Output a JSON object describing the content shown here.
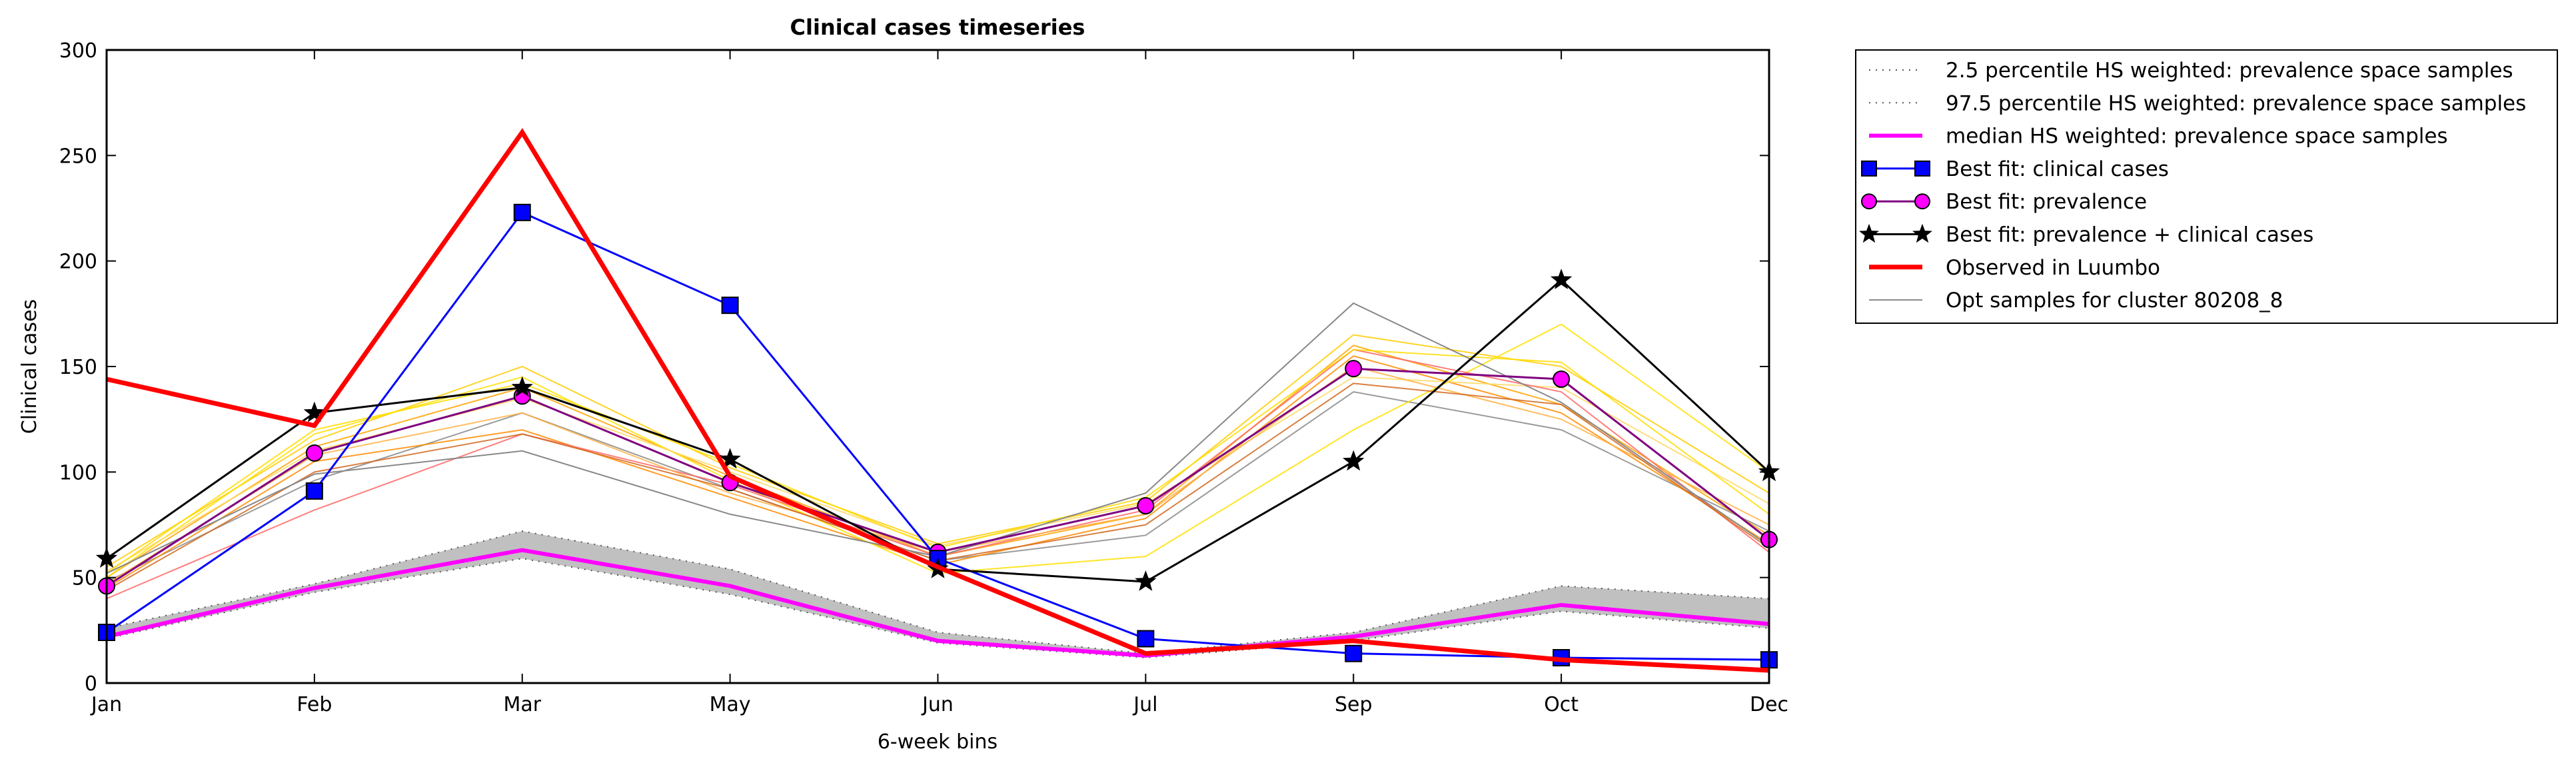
{
  "chart_data": {
    "type": "line",
    "title": "Clinical cases timeseries",
    "xlabel": "6-week bins",
    "ylabel": "Clinical cases",
    "categories": [
      "Jan",
      "Feb",
      "Mar",
      "May",
      "Jun",
      "Jul",
      "Sep",
      "Oct",
      "Dec"
    ],
    "ylim": [
      0,
      300
    ],
    "yticks": [
      0,
      50,
      100,
      150,
      200,
      250,
      300
    ],
    "grid": false,
    "legend_position": "outside-right-top",
    "series": [
      {
        "name": "2.5 percentile HS weighted: prevalence space samples",
        "style": "dotted",
        "color": "#555555",
        "values": [
          21,
          43,
          59,
          42,
          19,
          12,
          20,
          34,
          26
        ]
      },
      {
        "name": "97.5 percentile HS weighted: prevalence space samples",
        "style": "dotted",
        "color": "#555555",
        "values": [
          26,
          47,
          72,
          54,
          24,
          14,
          24,
          46,
          40
        ]
      },
      {
        "name": "median HS weighted: prevalence space samples",
        "style": "solid",
        "color": "#ff00ff",
        "values": [
          22,
          45,
          63,
          46,
          20,
          13,
          22,
          37,
          28
        ]
      },
      {
        "name": "Best fit: clinical cases",
        "style": "solid",
        "color": "#0000ff",
        "marker": "square",
        "values": [
          24,
          91,
          223,
          179,
          59,
          21,
          14,
          12,
          11
        ]
      },
      {
        "name": "Best fit: prevalence",
        "style": "solid",
        "color": "#800080",
        "marker": "circle",
        "marker_fill": "#ff00ff",
        "values": [
          46,
          109,
          136,
          95,
          62,
          84,
          149,
          144,
          68
        ]
      },
      {
        "name": "Best fit: prevalence + clinical cases",
        "style": "solid",
        "color": "#000000",
        "marker": "star",
        "values": [
          59,
          128,
          140,
          106,
          54,
          48,
          105,
          191,
          100
        ]
      },
      {
        "name": "Observed in Luumbo",
        "style": "solid",
        "color": "#ff0000",
        "values": [
          144,
          122,
          261,
          98,
          55,
          14,
          20,
          11,
          6
        ]
      },
      {
        "name": "Opt samples for cluster 80208_8",
        "style": "solid",
        "color": "#888888",
        "values": [
          52,
          99,
          110,
          80,
          60,
          90,
          180,
          133,
          65
        ]
      }
    ],
    "sample_lines": [
      {
        "color": "#888888",
        "values": [
          48,
          96,
          128,
          92,
          58,
          70,
          138,
          120,
          72
        ]
      },
      {
        "color": "#ffa500",
        "values": [
          50,
          112,
          140,
          98,
          60,
          80,
          160,
          132,
          70
        ]
      },
      {
        "color": "#ff8c00",
        "values": [
          45,
          105,
          120,
          88,
          56,
          78,
          155,
          128,
          66
        ]
      },
      {
        "color": "#ffcc00",
        "values": [
          55,
          115,
          150,
          102,
          66,
          86,
          165,
          150,
          90
        ]
      },
      {
        "color": "#ffe000",
        "values": [
          50,
          118,
          145,
          96,
          52,
          60,
          120,
          170,
          100
        ]
      },
      {
        "color": "#ffd966",
        "values": [
          53,
          110,
          135,
          100,
          65,
          85,
          145,
          140,
          85
        ]
      },
      {
        "color": "#ff6666",
        "values": [
          40,
          82,
          118,
          94,
          60,
          82,
          158,
          138,
          62
        ]
      },
      {
        "color": "#ffb347",
        "values": [
          47,
          108,
          128,
          90,
          62,
          80,
          150,
          125,
          75
        ]
      },
      {
        "color": "#d2691e",
        "values": [
          44,
          100,
          118,
          92,
          58,
          75,
          142,
          132,
          64
        ]
      },
      {
        "color": "#ffdd00",
        "values": [
          52,
          120,
          142,
          104,
          64,
          88,
          158,
          152,
          80
        ]
      }
    ],
    "band": {
      "lower_series": 0,
      "upper_series": 1,
      "fill": "#c0c0c0"
    }
  }
}
